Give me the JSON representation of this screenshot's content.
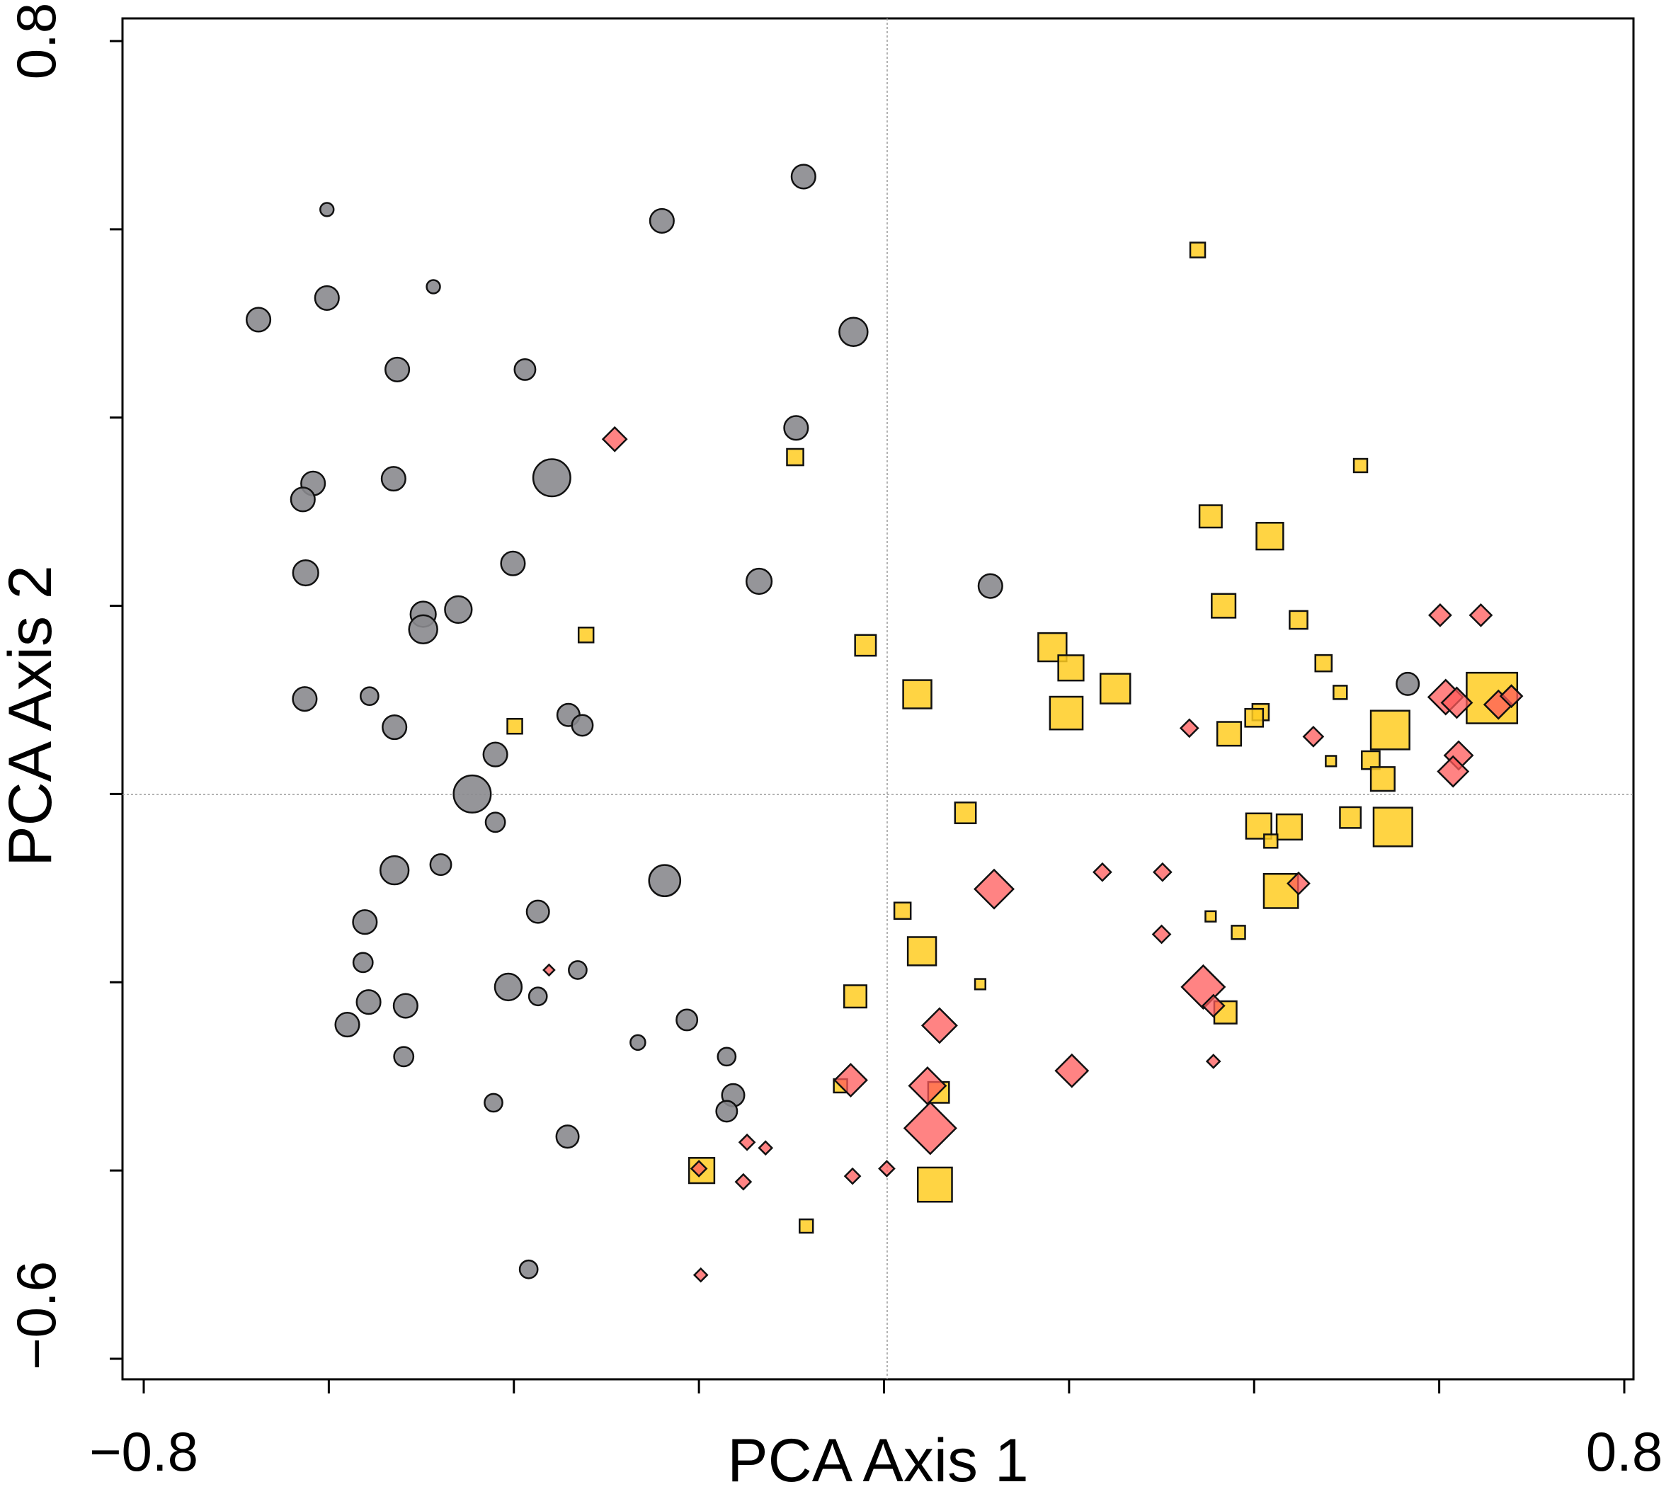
{
  "chart_data": {
    "type": "scatter",
    "title": "",
    "xlabel": "PCA Axis 1",
    "ylabel": "PCA Axis 2",
    "xlim": [
      -0.8,
      0.8
    ],
    "ylim": [
      -0.6,
      0.8
    ],
    "x_tick_labels": [
      {
        "value": -0.8,
        "label": "−0.8"
      },
      {
        "value": 0.8,
        "label": "0.8"
      }
    ],
    "y_tick_labels": [
      {
        "value": 0.8,
        "label": "0.8"
      },
      {
        "value": -0.6,
        "label": "−0.6"
      }
    ],
    "x_ticks": [
      -0.8,
      -0.6,
      -0.4,
      -0.2,
      0.0,
      0.2,
      0.4,
      0.6,
      0.8
    ],
    "y_ticks": [
      0.8,
      0.6,
      0.4,
      0.2,
      0.0,
      -0.2,
      -0.4,
      -0.6
    ],
    "reference_lines": {
      "x": 0.0,
      "y": 0.0
    },
    "grid": false,
    "legend": "none",
    "series": [
      {
        "name": "grey circles",
        "marker": "circle",
        "color": "#8a8a8e",
        "opacity": 0.9,
        "points": [
          {
            "x": -0.087,
            "y": 0.656,
            "s": 0.8
          },
          {
            "x": -0.602,
            "y": 0.621,
            "s": 0.45
          },
          {
            "x": -0.24,
            "y": 0.609,
            "s": 0.8
          },
          {
            "x": -0.487,
            "y": 0.539,
            "s": 0.45
          },
          {
            "x": -0.676,
            "y": 0.504,
            "s": 0.8
          },
          {
            "x": -0.602,
            "y": 0.527,
            "s": 0.8
          },
          {
            "x": -0.033,
            "y": 0.491,
            "s": 0.95
          },
          {
            "x": -0.526,
            "y": 0.451,
            "s": 0.8
          },
          {
            "x": -0.388,
            "y": 0.451,
            "s": 0.7
          },
          {
            "x": -0.095,
            "y": 0.389,
            "s": 0.8
          },
          {
            "x": -0.359,
            "y": 0.336,
            "s": 1.25
          },
          {
            "x": -0.53,
            "y": 0.335,
            "s": 0.8
          },
          {
            "x": -0.617,
            "y": 0.33,
            "s": 0.8
          },
          {
            "x": -0.628,
            "y": 0.313,
            "s": 0.8
          },
          {
            "x": -0.401,
            "y": 0.245,
            "s": 0.8
          },
          {
            "x": -0.625,
            "y": 0.235,
            "s": 0.85
          },
          {
            "x": -0.135,
            "y": 0.226,
            "s": 0.85
          },
          {
            "x": 0.115,
            "y": 0.221,
            "s": 0.8
          },
          {
            "x": -0.498,
            "y": 0.191,
            "s": 0.85
          },
          {
            "x": -0.46,
            "y": 0.196,
            "s": 0.9
          },
          {
            "x": -0.498,
            "y": 0.175,
            "s": 0.95
          },
          {
            "x": -0.626,
            "y": 0.101,
            "s": 0.8
          },
          {
            "x": -0.556,
            "y": 0.104,
            "s": 0.6
          },
          {
            "x": -0.341,
            "y": 0.084,
            "s": 0.75
          },
          {
            "x": -0.529,
            "y": 0.071,
            "s": 0.8
          },
          {
            "x": -0.326,
            "y": 0.073,
            "s": 0.7
          },
          {
            "x": 0.566,
            "y": 0.117,
            "s": 0.75
          },
          {
            "x": -0.42,
            "y": 0.042,
            "s": 0.8
          },
          {
            "x": -0.445,
            "y": 0.0,
            "s": 1.25
          },
          {
            "x": -0.42,
            "y": -0.03,
            "s": 0.65
          },
          {
            "x": -0.479,
            "y": -0.075,
            "s": 0.7
          },
          {
            "x": -0.529,
            "y": -0.081,
            "s": 0.95
          },
          {
            "x": -0.237,
            "y": -0.092,
            "s": 1.05
          },
          {
            "x": -0.374,
            "y": -0.125,
            "s": 0.75
          },
          {
            "x": -0.561,
            "y": -0.136,
            "s": 0.8
          },
          {
            "x": -0.563,
            "y": -0.179,
            "s": 0.65
          },
          {
            "x": -0.331,
            "y": -0.187,
            "s": 0.6
          },
          {
            "x": -0.406,
            "y": -0.205,
            "s": 0.9
          },
          {
            "x": -0.374,
            "y": -0.215,
            "s": 0.6
          },
          {
            "x": -0.557,
            "y": -0.221,
            "s": 0.8
          },
          {
            "x": -0.517,
            "y": -0.225,
            "s": 0.8
          },
          {
            "x": -0.58,
            "y": -0.245,
            "s": 0.8
          },
          {
            "x": -0.213,
            "y": -0.24,
            "s": 0.7
          },
          {
            "x": -0.266,
            "y": -0.264,
            "s": 0.5
          },
          {
            "x": -0.17,
            "y": -0.279,
            "s": 0.6
          },
          {
            "x": -0.519,
            "y": -0.279,
            "s": 0.65
          },
          {
            "x": -0.422,
            "y": -0.328,
            "s": 0.6
          },
          {
            "x": -0.163,
            "y": -0.32,
            "s": 0.75
          },
          {
            "x": -0.17,
            "y": -0.337,
            "s": 0.7
          },
          {
            "x": -0.342,
            "y": -0.364,
            "s": 0.75
          },
          {
            "x": -0.384,
            "y": -0.505,
            "s": 0.6
          }
        ]
      },
      {
        "name": "yellow squares",
        "marker": "square",
        "color": "#ffcc22",
        "opacity": 0.85,
        "points": [
          {
            "x": 0.339,
            "y": 0.578,
            "s": 0.5
          },
          {
            "x": -0.096,
            "y": 0.358,
            "s": 0.55
          },
          {
            "x": 0.515,
            "y": 0.349,
            "s": 0.45
          },
          {
            "x": 0.353,
            "y": 0.295,
            "s": 0.75
          },
          {
            "x": 0.417,
            "y": 0.274,
            "s": 0.9
          },
          {
            "x": 0.367,
            "y": 0.2,
            "s": 0.8
          },
          {
            "x": 0.448,
            "y": 0.185,
            "s": 0.6
          },
          {
            "x": -0.322,
            "y": 0.169,
            "s": 0.5
          },
          {
            "x": 0.182,
            "y": 0.156,
            "s": 0.95
          },
          {
            "x": -0.02,
            "y": 0.158,
            "s": 0.7
          },
          {
            "x": 0.475,
            "y": 0.139,
            "s": 0.55
          },
          {
            "x": 0.202,
            "y": 0.134,
            "s": 0.85
          },
          {
            "x": 0.25,
            "y": 0.112,
            "s": 1.0
          },
          {
            "x": 0.036,
            "y": 0.106,
            "s": 0.95
          },
          {
            "x": 0.197,
            "y": 0.086,
            "s": 1.1
          },
          {
            "x": 0.657,
            "y": 0.102,
            "s": 1.7
          },
          {
            "x": 0.493,
            "y": 0.108,
            "s": 0.45
          },
          {
            "x": 0.407,
            "y": 0.087,
            "s": 0.55
          },
          {
            "x": 0.4,
            "y": 0.081,
            "s": 0.6
          },
          {
            "x": -0.399,
            "y": 0.072,
            "s": 0.5
          },
          {
            "x": 0.373,
            "y": 0.064,
            "s": 0.8
          },
          {
            "x": 0.547,
            "y": 0.068,
            "s": 1.3
          },
          {
            "x": 0.483,
            "y": 0.035,
            "s": 0.35
          },
          {
            "x": 0.526,
            "y": 0.036,
            "s": 0.6
          },
          {
            "x": 0.539,
            "y": 0.016,
            "s": 0.8
          },
          {
            "x": 0.088,
            "y": -0.02,
            "s": 0.7
          },
          {
            "x": 0.504,
            "y": -0.025,
            "s": 0.7
          },
          {
            "x": 0.405,
            "y": -0.034,
            "s": 0.85
          },
          {
            "x": 0.438,
            "y": -0.035,
            "s": 0.85
          },
          {
            "x": 0.55,
            "y": -0.035,
            "s": 1.3
          },
          {
            "x": 0.418,
            "y": -0.05,
            "s": 0.45
          },
          {
            "x": 0.429,
            "y": -0.103,
            "s": 1.15
          },
          {
            "x": 0.02,
            "y": -0.124,
            "s": 0.55
          },
          {
            "x": 0.353,
            "y": -0.13,
            "s": 0.35
          },
          {
            "x": 0.383,
            "y": -0.147,
            "s": 0.45
          },
          {
            "x": 0.041,
            "y": -0.167,
            "s": 0.95
          },
          {
            "x": 0.104,
            "y": -0.202,
            "s": 0.35
          },
          {
            "x": -0.031,
            "y": -0.215,
            "s": 0.75
          },
          {
            "x": 0.369,
            "y": -0.232,
            "s": 0.75
          },
          {
            "x": -0.047,
            "y": -0.31,
            "s": 0.45
          },
          {
            "x": 0.059,
            "y": -0.317,
            "s": 0.7
          },
          {
            "x": -0.197,
            "y": -0.4,
            "s": 0.85
          },
          {
            "x": 0.055,
            "y": -0.415,
            "s": 1.15
          },
          {
            "x": -0.084,
            "y": -0.459,
            "s": 0.45
          }
        ]
      },
      {
        "name": "red diamonds",
        "marker": "diamond",
        "color": "#ff5a5a",
        "opacity": 0.75,
        "points": [
          {
            "x": -0.291,
            "y": 0.377,
            "s": 0.55
          },
          {
            "x": 0.601,
            "y": 0.19,
            "s": 0.5
          },
          {
            "x": 0.645,
            "y": 0.19,
            "s": 0.5
          },
          {
            "x": 0.607,
            "y": 0.103,
            "s": 0.8
          },
          {
            "x": 0.664,
            "y": 0.095,
            "s": 0.65
          },
          {
            "x": 0.678,
            "y": 0.104,
            "s": 0.5
          },
          {
            "x": 0.619,
            "y": 0.097,
            "s": 0.7
          },
          {
            "x": 0.33,
            "y": 0.07,
            "s": 0.4
          },
          {
            "x": 0.464,
            "y": 0.061,
            "s": 0.45
          },
          {
            "x": 0.621,
            "y": 0.041,
            "s": 0.65
          },
          {
            "x": 0.615,
            "y": 0.024,
            "s": 0.7
          },
          {
            "x": 0.236,
            "y": -0.083,
            "s": 0.4
          },
          {
            "x": 0.301,
            "y": -0.083,
            "s": 0.4
          },
          {
            "x": 0.448,
            "y": -0.095,
            "s": 0.5
          },
          {
            "x": 0.119,
            "y": -0.101,
            "s": 0.9
          },
          {
            "x": 0.3,
            "y": -0.149,
            "s": 0.4
          },
          {
            "x": -0.362,
            "y": -0.187,
            "s": 0.25
          },
          {
            "x": 0.345,
            "y": -0.205,
            "s": 1.0
          },
          {
            "x": 0.356,
            "y": -0.225,
            "s": 0.5
          },
          {
            "x": 0.06,
            "y": -0.246,
            "s": 0.8
          },
          {
            "x": 0.356,
            "y": -0.284,
            "s": 0.3
          },
          {
            "x": -0.036,
            "y": -0.304,
            "s": 0.75
          },
          {
            "x": 0.203,
            "y": -0.294,
            "s": 0.75
          },
          {
            "x": 0.047,
            "y": -0.31,
            "s": 0.85
          },
          {
            "x": 0.05,
            "y": -0.355,
            "s": 1.2
          },
          {
            "x": -0.148,
            "y": -0.37,
            "s": 0.35
          },
          {
            "x": -0.128,
            "y": -0.376,
            "s": 0.3
          },
          {
            "x": -0.2,
            "y": -0.398,
            "s": 0.35
          },
          {
            "x": 0.003,
            "y": -0.398,
            "s": 0.35
          },
          {
            "x": -0.034,
            "y": -0.406,
            "s": 0.35
          },
          {
            "x": -0.152,
            "y": -0.412,
            "s": 0.35
          },
          {
            "x": -0.198,
            "y": -0.511,
            "s": 0.3
          }
        ]
      }
    ]
  }
}
